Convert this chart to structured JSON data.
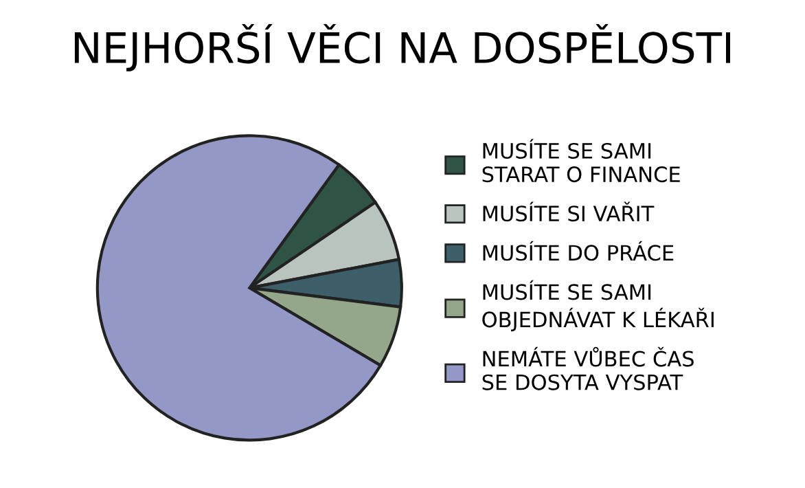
{
  "chart_data": {
    "type": "pie",
    "title": "NEJHORŠÍ VĚCI NA DOSPĚLOSTI",
    "categories": [
      "MUSÍTE SE SAMI\nSTARAT O FINANCE",
      "MUSÍTE SI VAŘIT",
      "MUSÍTE DO PRÁCE",
      "MUSÍTE SE SAMI\nOBJEDNÁVAT K LÉKAŘI",
      "NEMÁTE VŮBEC ČAS\nSE DOSYTA VYSPAT"
    ],
    "values": [
      5.5,
      6.5,
      5,
      6.5,
      76.5
    ],
    "colors": [
      "#2f5446",
      "#b9c4bf",
      "#3d5f6a",
      "#95a78a",
      "#9498c6"
    ],
    "legend": "right"
  }
}
